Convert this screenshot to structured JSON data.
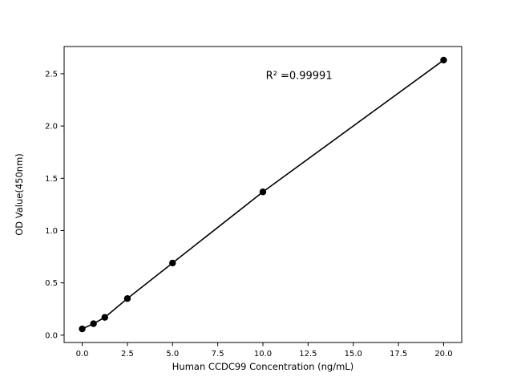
{
  "chart_data": {
    "type": "scatter",
    "x": [
      0,
      0.625,
      1.25,
      2.5,
      5,
      10,
      20
    ],
    "y": [
      0.06,
      0.11,
      0.17,
      0.35,
      0.69,
      1.37,
      2.63
    ],
    "line": true,
    "marker_color": "#000000",
    "line_color": "#000000",
    "title": "",
    "xlabel": "Human CCDC99 Concentration (ng/mL)",
    "ylabel": "OD Value(450nm)",
    "xlim": [
      -1.0,
      21.0
    ],
    "ylim": [
      -0.07,
      2.76
    ],
    "x_tick_labels": [
      "0.0",
      "2.5",
      "5.0",
      "7.5",
      "10.0",
      "12.5",
      "15.0",
      "17.5",
      "20.0"
    ],
    "y_tick_labels": [
      "0.0",
      "0.5",
      "1.0",
      "1.5",
      "2.0",
      "2.5"
    ],
    "grid": false,
    "legend": "none",
    "annotation": {
      "text": "R² =0.99991",
      "x": 12,
      "y": 2.45
    }
  }
}
